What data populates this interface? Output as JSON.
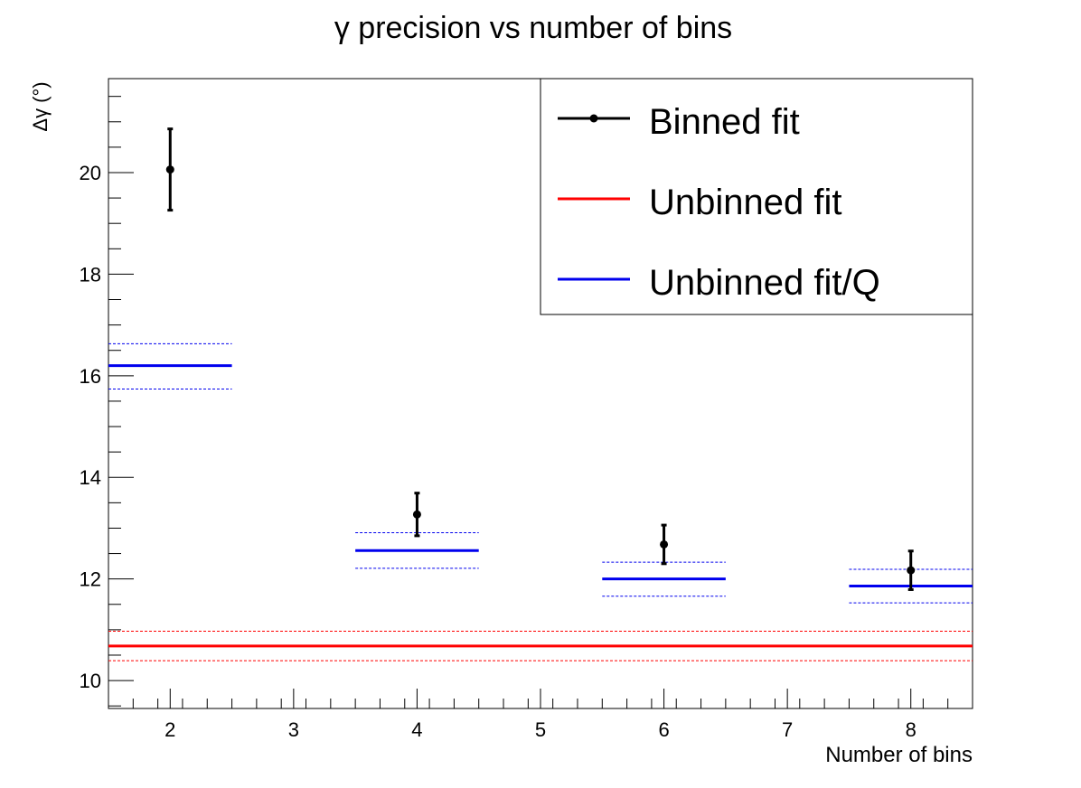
{
  "chart_data": {
    "type": "scatter",
    "title": "γ precision vs number of bins",
    "xlabel": "Number of bins",
    "ylabel": "Δγ (°)",
    "xlim": [
      1.5,
      8.5
    ],
    "ylim": [
      9.45,
      21.85
    ],
    "x_ticks": [
      2,
      3,
      4,
      5,
      6,
      7,
      8
    ],
    "y_ticks": [
      10,
      12,
      14,
      16,
      18,
      20
    ],
    "grid": false,
    "legend_placement": "top-right",
    "legend": [
      {
        "label": "Binned fit",
        "color": "#000000",
        "style": "marker-line"
      },
      {
        "label": "Unbinned fit",
        "color": "#ff0000",
        "style": "line"
      },
      {
        "label": "Unbinned fit/Q",
        "color": "#0000ee",
        "style": "line"
      }
    ],
    "series": [
      {
        "name": "Binned fit",
        "color": "#000000",
        "points": [
          {
            "x": 2,
            "y": 20.06,
            "err": 0.8
          },
          {
            "x": 4,
            "y": 13.27,
            "err": 0.42
          },
          {
            "x": 6,
            "y": 12.68,
            "err": 0.38
          },
          {
            "x": 8,
            "y": 12.17,
            "err": 0.38
          }
        ]
      },
      {
        "name": "Unbinned fit",
        "color": "#ff0000",
        "segments": [
          {
            "x_from": 1.5,
            "x_to": 8.5,
            "y": 10.68,
            "y_low": 10.39,
            "y_high": 10.97
          }
        ]
      },
      {
        "name": "Unbinned fit/Q",
        "color": "#0000ee",
        "segments": [
          {
            "x_from": 1.5,
            "x_to": 2.5,
            "y": 16.2,
            "y_low": 15.74,
            "y_high": 16.63
          },
          {
            "x_from": 3.5,
            "x_to": 4.5,
            "y": 12.56,
            "y_low": 12.21,
            "y_high": 12.91
          },
          {
            "x_from": 5.5,
            "x_to": 6.5,
            "y": 12.0,
            "y_low": 11.66,
            "y_high": 12.33
          },
          {
            "x_from": 7.5,
            "x_to": 8.5,
            "y": 11.86,
            "y_low": 11.53,
            "y_high": 12.19
          }
        ]
      }
    ]
  }
}
